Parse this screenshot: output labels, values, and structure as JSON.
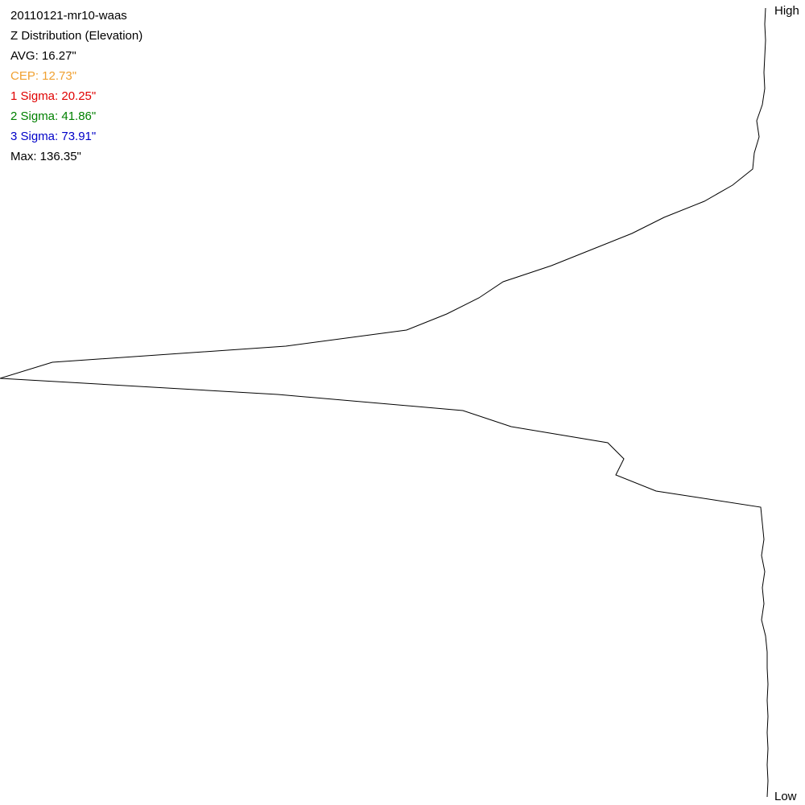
{
  "chart_data": {
    "type": "profile",
    "title": "20110121-mr10-waas",
    "subtitle": "Z Distribution (Elevation)",
    "stats": [
      {
        "text": "AVG: 16.27\"",
        "color": "#000000"
      },
      {
        "text": "CEP: 12.73\"",
        "color": "#f0a030"
      },
      {
        "text": "1 Sigma: 20.25\"",
        "color": "#e00000"
      },
      {
        "text": "2 Sigma: 41.86\"",
        "color": "#008000"
      },
      {
        "text": "3 Sigma: 73.91\"",
        "color": "#0000c8"
      },
      {
        "text": "Max: 136.35\"",
        "color": "#000000"
      }
    ],
    "top_label": "High",
    "bottom_label": "Low",
    "color": "#000000",
    "xlim": [
      0,
      955
    ],
    "values": [
      4,
      5,
      4,
      5,
      6,
      5,
      8,
      15,
      12,
      18,
      20,
      45,
      80,
      130,
      170,
      220,
      270,
      330,
      360,
      400,
      450,
      600,
      890,
      955,
      610,
      380,
      320,
      200,
      180,
      190,
      140,
      10,
      8,
      6,
      9,
      5,
      8,
      6,
      9,
      4,
      2,
      2,
      1,
      2,
      1,
      2,
      1,
      2,
      1,
      2
    ]
  }
}
